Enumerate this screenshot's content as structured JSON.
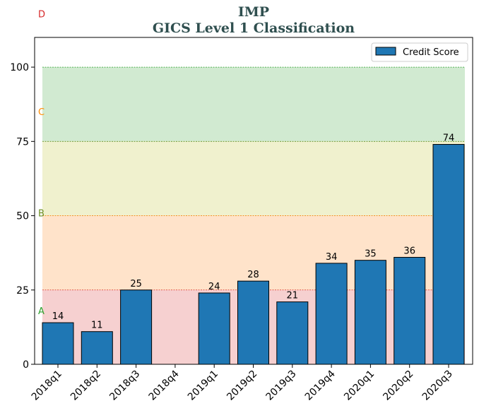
{
  "chart_data": {
    "type": "bar",
    "title": "IMP",
    "subtitle": "GICS Level 1 Classification",
    "xlabel": "",
    "ylabel": "",
    "categories": [
      "2018q1",
      "2018q2",
      "2018q3",
      "2018q4",
      "2019q1",
      "2019q2",
      "2019q3",
      "2019q4",
      "2020q1",
      "2020q2",
      "2020q3"
    ],
    "series": [
      {
        "name": "Credit Score",
        "values": [
          14,
          11,
          25,
          null,
          24,
          28,
          21,
          34,
          35,
          36,
          74
        ],
        "color": "#1f77b4"
      }
    ],
    "data_labels": [
      "14",
      "11",
      "25",
      "",
      "24",
      "28",
      "21",
      "34",
      "35",
      "36",
      "74"
    ],
    "ylim": [
      0,
      110
    ],
    "yticks": [
      0,
      25,
      50,
      75,
      100
    ],
    "legend": {
      "placement": "top-right",
      "entries": [
        "Credit Score"
      ]
    },
    "grid": false,
    "zones": [
      {
        "label": "A",
        "from": 0,
        "to": 25,
        "fill": "#d62728",
        "line": "#d62728",
        "label_color": "#2ca02c",
        "label_value": 18
      },
      {
        "label": "B",
        "from": 25,
        "to": 50,
        "fill": "#ff7f0e",
        "line": "#ff7f0e",
        "label_color": "#6b8e23",
        "label_value": 51
      },
      {
        "label": "C",
        "from": 50,
        "to": 75,
        "fill": "#bcbd22",
        "line": "#6b8e23",
        "label_color": "#ff8c00",
        "label_value": 85
      },
      {
        "label": "D",
        "from": 75,
        "to": 100,
        "fill": "#2ca02c",
        "line": "#2ca02c",
        "label_color": "#d62728",
        "label_value": 118
      }
    ]
  }
}
